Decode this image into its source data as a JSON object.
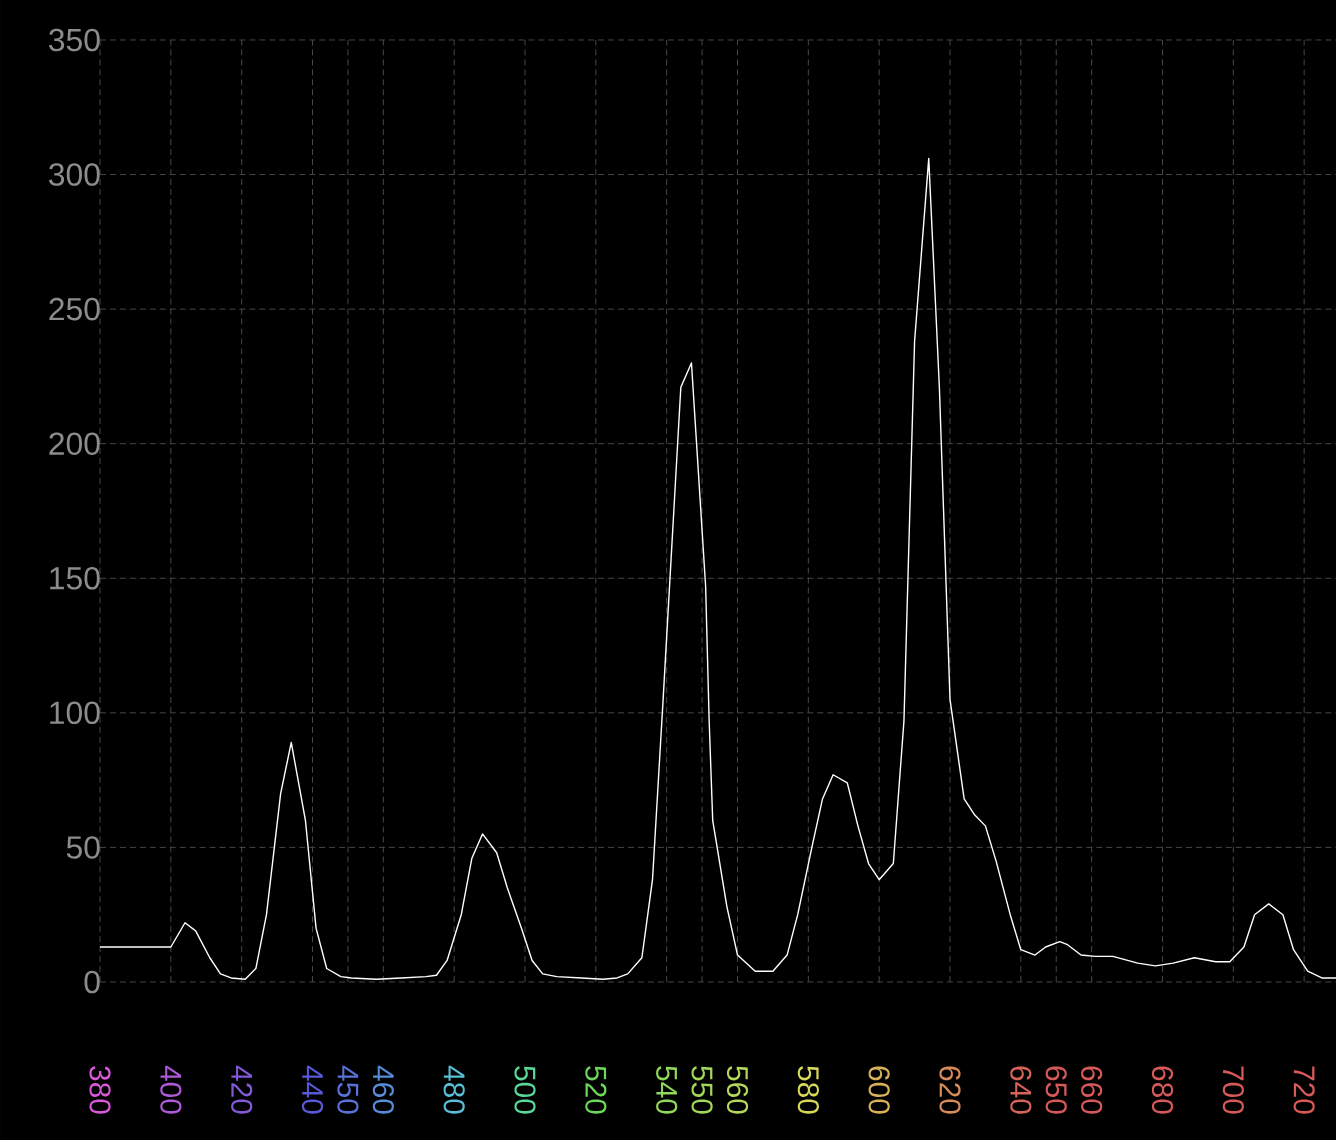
{
  "chart_data": {
    "type": "line",
    "x": [
      380,
      400,
      404,
      407,
      411,
      414,
      417,
      421,
      424,
      427,
      431,
      434,
      438,
      441,
      444,
      448,
      451,
      458,
      465,
      472,
      475,
      478,
      482,
      485,
      488,
      492,
      495,
      499,
      502,
      505,
      509,
      516,
      522,
      526,
      529,
      533,
      536,
      539,
      544,
      547,
      551,
      552,
      553,
      557,
      560,
      565,
      570,
      574,
      577,
      581,
      584,
      587,
      591,
      594,
      597,
      600,
      604,
      607,
      610,
      614,
      617,
      620,
      624,
      627,
      630,
      633,
      637,
      640,
      644,
      647,
      651,
      653,
      657,
      661,
      666,
      673,
      678,
      683,
      689,
      695,
      699,
      703,
      706,
      710,
      714,
      717,
      721,
      725,
      729
    ],
    "series": [
      {
        "color": "#ffffff",
        "values": [
          13,
          13,
          22,
          19,
          9,
          3,
          1.5,
          1,
          5,
          25,
          70,
          89,
          60,
          20,
          5,
          2,
          1.5,
          1,
          1.5,
          2,
          2.5,
          8,
          25,
          46,
          55,
          48,
          35,
          20,
          8,
          3,
          2,
          1.5,
          1,
          1.5,
          3,
          9,
          38,
          105,
          221,
          230,
          147,
          97,
          60,
          28,
          10,
          4,
          4,
          10,
          25,
          50,
          68,
          77,
          74,
          58,
          44,
          38,
          44,
          97,
          238,
          306,
          221,
          105,
          68,
          62,
          58,
          45,
          25,
          12,
          10,
          13,
          15,
          14,
          10,
          9.5,
          9.5,
          7,
          6,
          7,
          9,
          7.5,
          7.5,
          13,
          25,
          29,
          25,
          12,
          4,
          1.5,
          1.5
        ]
      }
    ],
    "xlim": [
      380,
      729
    ],
    "ylim": [
      0,
      350
    ],
    "xticks": [
      380,
      400,
      420,
      440,
      450,
      460,
      480,
      500,
      520,
      540,
      550,
      560,
      580,
      600,
      620,
      640,
      650,
      660,
      680,
      700,
      720
    ],
    "yticks": [
      0,
      50,
      100,
      150,
      200,
      250,
      300,
      350
    ],
    "grid": true,
    "marker": "none",
    "line_style": "solid"
  }
}
